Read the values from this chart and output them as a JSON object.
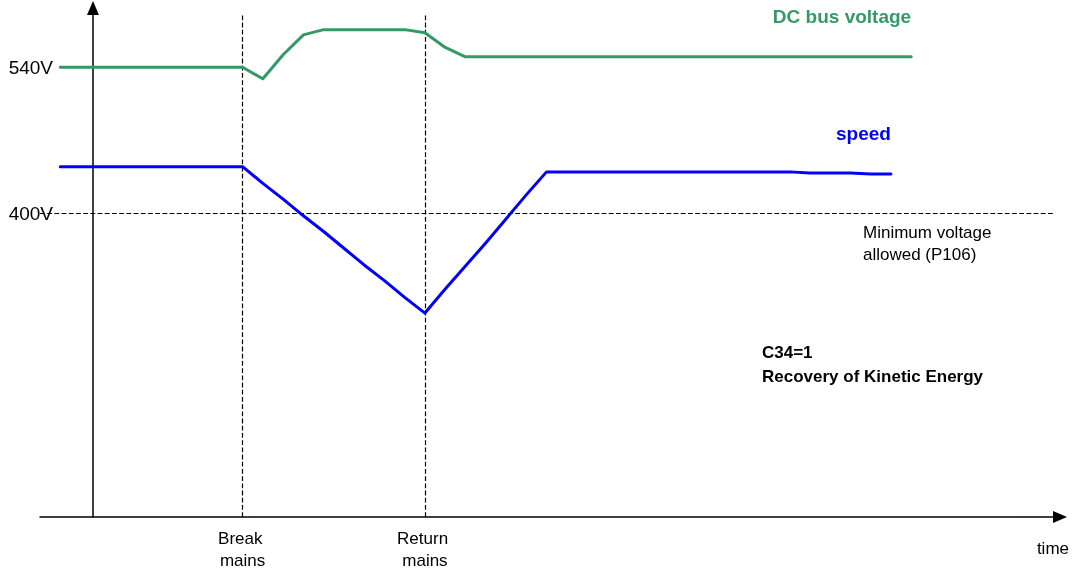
{
  "chart_data": {
    "type": "line",
    "xlabel": "time",
    "categories": [
      null,
      null,
      null,
      null,
      null,
      null,
      null,
      null,
      null,
      null,
      "Break mains",
      null,
      null,
      null,
      null,
      null,
      null,
      null,
      null,
      "Return mains",
      null,
      null,
      null,
      null,
      null,
      null,
      null,
      null,
      null,
      null,
      null,
      null,
      null,
      null,
      null,
      null,
      null,
      null,
      null,
      null,
      null,
      null,
      null,
      null,
      null,
      null,
      null,
      null,
      null,
      null,
      null
    ],
    "series": [
      {
        "name": "DC bus voltage",
        "color": "#339966",
        "values": [
          null,
          540,
          540,
          540,
          540,
          540,
          540,
          540,
          540,
          540,
          540,
          529,
          552,
          571,
          576,
          576,
          576,
          576,
          576,
          573,
          559,
          550,
          550,
          550,
          550,
          550,
          550,
          550,
          550,
          550,
          550,
          550,
          550,
          550,
          550,
          550,
          550,
          550,
          550,
          550,
          550,
          550,
          550,
          550,
          null,
          null,
          null,
          null,
          null,
          null,
          null
        ]
      },
      {
        "name": "speed",
        "color": "#0000ff",
        "values": [
          null,
          445,
          445,
          445,
          445,
          445,
          445,
          445,
          445,
          445,
          445,
          429,
          414,
          398,
          383,
          367,
          351,
          336,
          320,
          305,
          328,
          350,
          372,
          395,
          418,
          440,
          440,
          440,
          440,
          440,
          440,
          440,
          440,
          440,
          440,
          440,
          440,
          440,
          439,
          439,
          439,
          438,
          438,
          null,
          null,
          null,
          null,
          null,
          null,
          null,
          null
        ]
      }
    ],
    "ylim": [
      110,
      590
    ],
    "yticks": [
      {
        "value": 540,
        "label": "540V"
      },
      {
        "value": 400,
        "label": "400V"
      }
    ],
    "grid": false,
    "legend": false,
    "marker": "none",
    "line_style": "solid",
    "ref_lines": [
      {
        "axis": "y",
        "value": 400,
        "label": "Minimum voltage allowed (P106)",
        "color": "#000000",
        "line_style": "dashed"
      },
      {
        "axis": "x",
        "value": "Break mains",
        "label": null,
        "color": "#000000",
        "line_style": "dashed"
      },
      {
        "axis": "x",
        "value": "Return mains",
        "label": null,
        "color": "#000000",
        "line_style": "dashed"
      }
    ],
    "annotations": [
      "C34=1\nRecovery of Kinetic Energy"
    ]
  }
}
